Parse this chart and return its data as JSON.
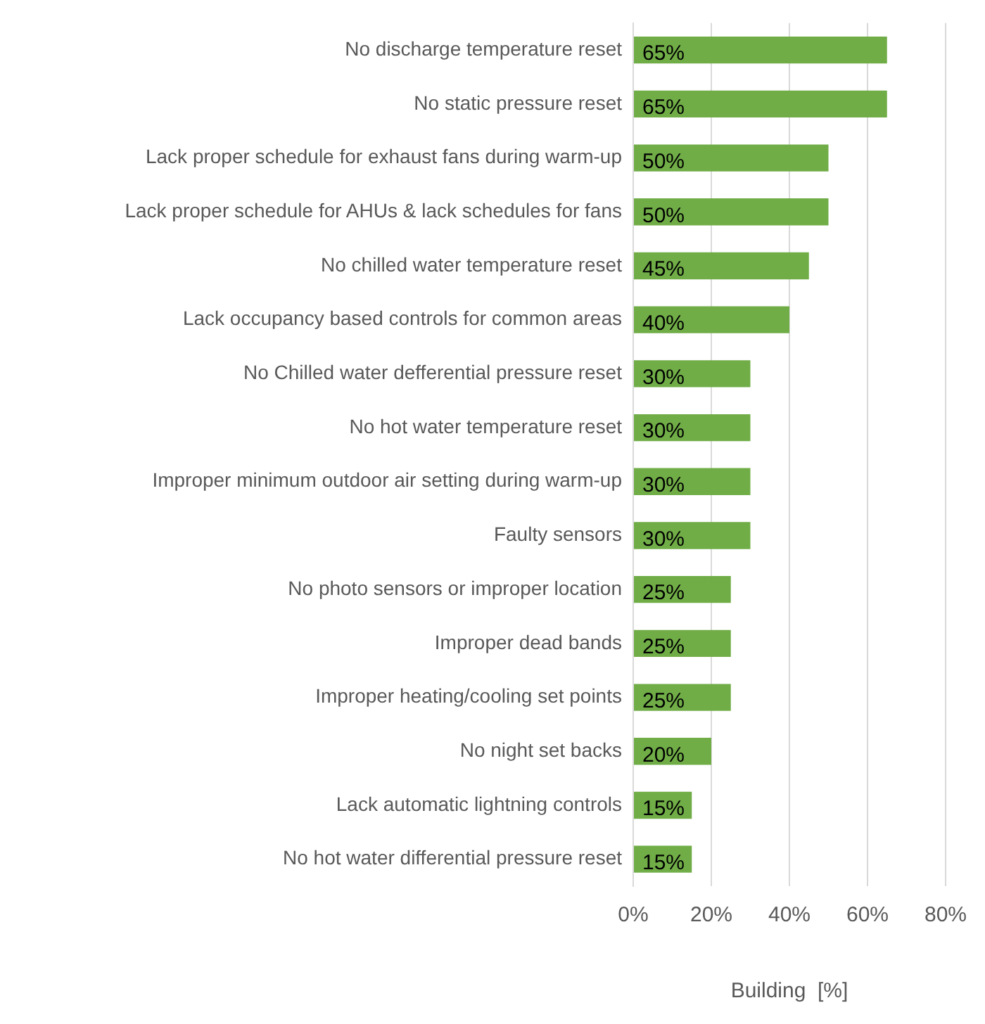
{
  "chart_data": {
    "type": "bar",
    "orientation": "horizontal",
    "xlabel": "Building  [%]",
    "categories": [
      "No discharge temperature reset",
      "No static pressure reset",
      "Lack proper schedule for exhaust fans during warm-up",
      "Lack proper schedule for AHUs & lack schedules for fans",
      "No chilled water temperature reset",
      "Lack occupancy based controls for common areas",
      "No Chilled water defferential pressure reset",
      "No hot water temperature reset",
      "Improper minimum outdoor air setting during warm-up",
      "Faulty sensors",
      "No photo sensors or improper location",
      "Improper dead bands",
      "Improper heating/cooling set points",
      "No night set backs",
      "Lack automatic lightning controls",
      "No hot water differential pressure reset"
    ],
    "values": [
      65,
      65,
      50,
      50,
      45,
      40,
      30,
      30,
      30,
      30,
      25,
      25,
      25,
      20,
      15,
      15
    ],
    "value_labels": [
      "65%",
      "65%",
      "50%",
      "50%",
      "45%",
      "40%",
      "30%",
      "30%",
      "30%",
      "30%",
      "25%",
      "25%",
      "25%",
      "20%",
      "15%",
      "15%"
    ],
    "color": "#70ad47",
    "xlim": [
      0,
      80
    ],
    "xticks": [
      {
        "value": 0,
        "label": "0%"
      },
      {
        "value": 20,
        "label": "20%"
      },
      {
        "value": 40,
        "label": "40%"
      },
      {
        "value": 60,
        "label": "60%"
      },
      {
        "value": 80,
        "label": "80%"
      }
    ],
    "grid": "x",
    "legend": false
  }
}
